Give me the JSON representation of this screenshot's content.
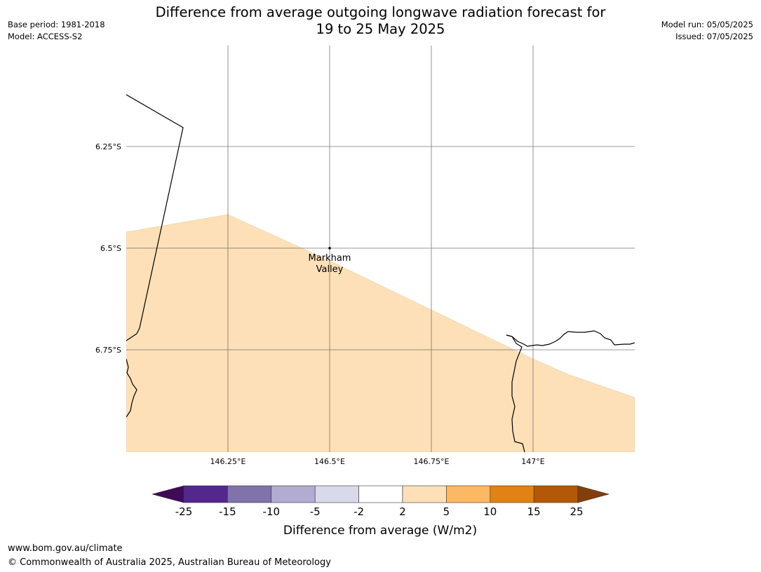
{
  "header": {
    "base_period": "Base period: 1981-2018",
    "model": "Model: ACCESS-S2",
    "title_line1": "Difference from average outgoing longwave radiation forecast for",
    "title_line2": "19 to 25 May 2025",
    "model_run": "Model run: 05/05/2025",
    "issued": "Issued: 07/05/2025"
  },
  "map": {
    "lat_labels": [
      "6.25°S",
      "6.5°S",
      "6.75°S"
    ],
    "lon_labels": [
      "146.25°E",
      "146.5°E",
      "146.75°E",
      "147°E"
    ],
    "place": {
      "name_line1": "Markham",
      "name_line2": "Valley"
    },
    "fill_color": "#fde0b7"
  },
  "colorbar": {
    "ticks": [
      "-25",
      "-15",
      "-10",
      "-5",
      "-2",
      "2",
      "5",
      "10",
      "15",
      "25"
    ],
    "colors": [
      "#3f0b57",
      "#54278f",
      "#8073ac",
      "#b2abd2",
      "#d8daeb",
      "#ffffff",
      "#fde0b7",
      "#fdb863",
      "#e08214",
      "#b35806",
      "#843e0a"
    ],
    "label": "Difference from average (W/m2)"
  },
  "footer": {
    "url": "www.bom.gov.au/climate",
    "copyright": "© Commonwealth of Australia 2025, Australian Bureau of Meteorology"
  }
}
